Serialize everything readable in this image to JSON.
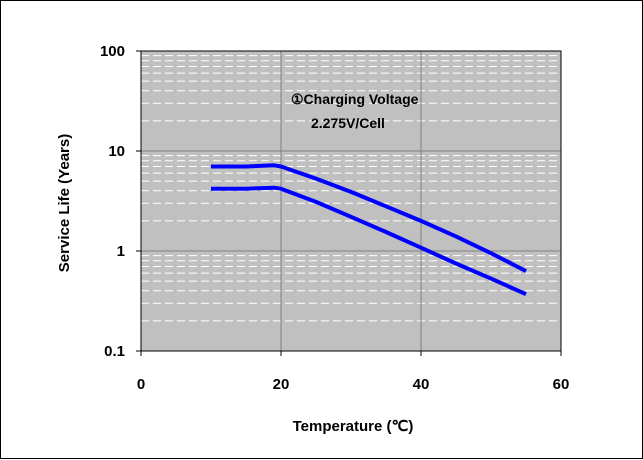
{
  "chart_data": {
    "type": "line",
    "title": "",
    "xlabel": "Temperature (℃)",
    "ylabel": "Service Life (Years)",
    "xlim": [
      0,
      60
    ],
    "ylim": [
      0.1,
      100
    ],
    "yscale": "log",
    "x_ticks": [
      0,
      20,
      40,
      60
    ],
    "x_tick_labels": [
      "0",
      "20",
      "40",
      "60"
    ],
    "y_ticks": [
      0.1,
      1,
      10,
      100
    ],
    "y_tick_labels": [
      "0.1",
      "1",
      "10",
      "100"
    ],
    "grid": true,
    "plot_background": "#c0c0c0",
    "series_color": "#0000ff",
    "annotations": [
      "①Charging Voltage",
      "2.275V/Cell"
    ],
    "series": [
      {
        "x": [
          10,
          15,
          19,
          20,
          25,
          30,
          35,
          40,
          45,
          50,
          55
        ],
        "y": [
          7.0,
          7.0,
          7.2,
          7.0,
          5.3,
          3.9,
          2.8,
          2.0,
          1.4,
          0.95,
          0.63
        ]
      },
      {
        "x": [
          10,
          15,
          19,
          20,
          25,
          30,
          35,
          40,
          45,
          50,
          55
        ],
        "y": [
          4.2,
          4.2,
          4.3,
          4.2,
          3.1,
          2.2,
          1.55,
          1.08,
          0.75,
          0.53,
          0.37
        ]
      }
    ]
  }
}
